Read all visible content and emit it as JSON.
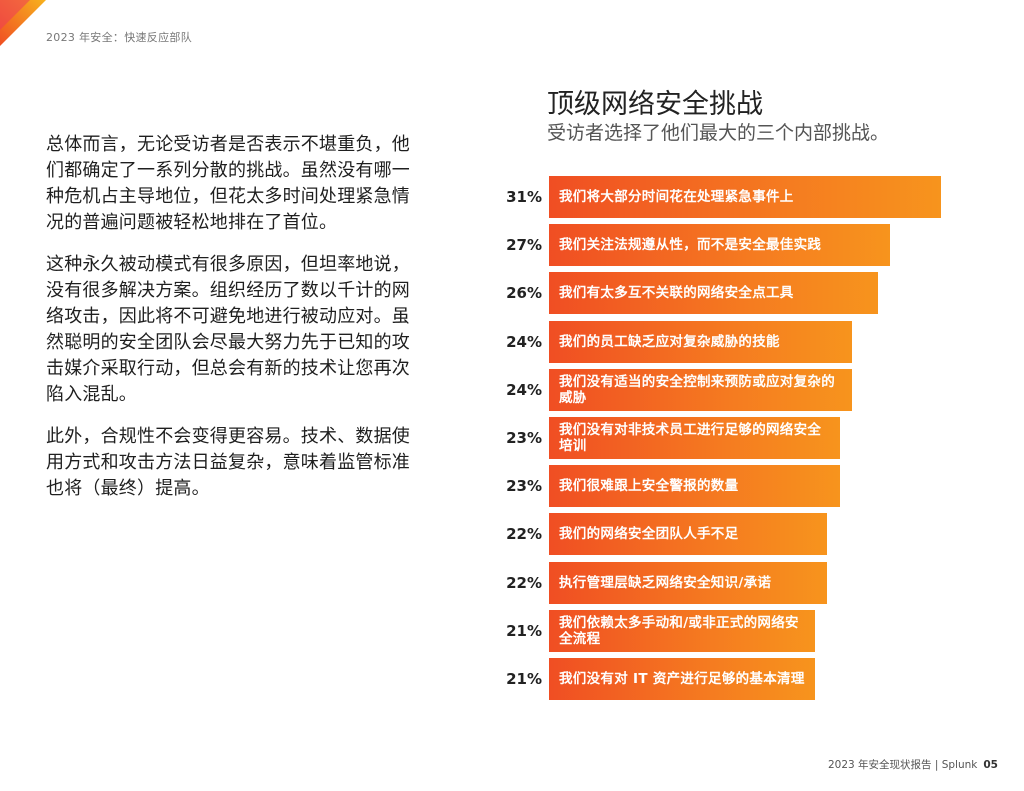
{
  "header": {
    "running_title": "2023 年安全：快速反应部队"
  },
  "body": {
    "paragraphs": [
      "总体而言，无论受访者是否表示不堪重负，他们都确定了一系列分散的挑战。虽然没有哪一种危机占主导地位，但花太多时间处理紧急情况的普遍问题被轻松地排在了首位。",
      "这种永久被动模式有很多原因，但坦率地说，没有很多解决方案。组织经历了数以千计的网络攻击，因此将不可避免地进行被动应对。虽然聪明的安全团队会尽最大努力先于已知的攻击媒介采取行动，但总会有新的技术让您再次陷入混乱。",
      "此外，合规性不会变得更容易。技术、数据使用方式和攻击方法日益复杂，意味着监管标准也将（最终）提高。"
    ]
  },
  "chart_data": {
    "type": "bar",
    "orientation": "horizontal",
    "title": "顶级网络安全挑战",
    "subtitle": "受访者选择了他们最大的三个内部挑战。",
    "unit": "%",
    "categories": [
      "我们将大部分时间花在处理紧急事件上",
      "我们关注法规遵从性，而不是安全最佳实践",
      "我们有太多互不关联的网络安全点工具",
      "我们的员工缺乏应对复杂威胁的技能",
      "我们没有适当的安全控制来预防或应对复杂的威胁",
      "我们没有对非技术员工进行足够的网络安全培训",
      "我们很难跟上安全警报的数量",
      "我们的网络安全团队人手不足",
      "执行管理层缺乏网络安全知识/承诺",
      "我们依赖太多手动和/或非正式的网络安全流程",
      "我们没有对 IT 资产进行足够的基本清理"
    ],
    "values": [
      31,
      27,
      26,
      24,
      24,
      23,
      23,
      22,
      22,
      21,
      21
    ],
    "value_labels": [
      "31%",
      "27%",
      "26%",
      "24%",
      "24%",
      "23%",
      "23%",
      "22%",
      "22%",
      "21%",
      "21%"
    ],
    "xlim": [
      0,
      31
    ],
    "colors": {
      "bar_start": "#f04e23",
      "bar_end": "#f7941d"
    }
  },
  "footer": {
    "text": "2023 年安全现状报告 | Splunk",
    "page": "05"
  },
  "colors": {
    "accent": "#f57b20",
    "corner_a": "#f04e23",
    "corner_b": "#f7b21d"
  }
}
